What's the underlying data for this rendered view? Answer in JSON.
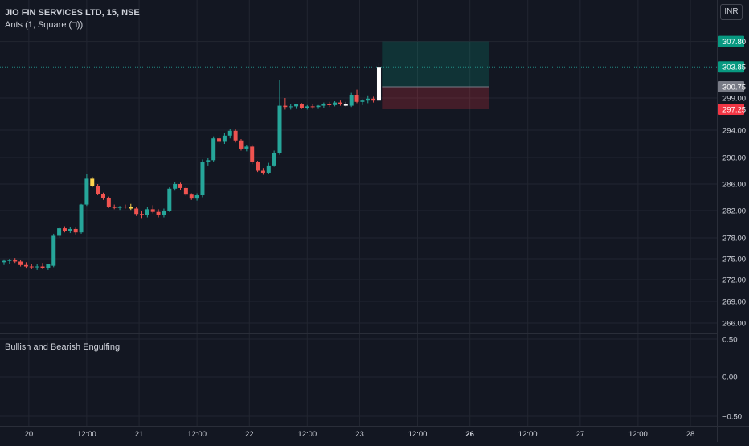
{
  "header": {
    "title": "JIO FIN SERVICES LTD, 15, NSE",
    "indicator": "Ants (1, Square (□))",
    "pane2_label": "Bullish and Bearish Engulfing",
    "currency": "INR"
  },
  "chart_data": {
    "type": "candlestick",
    "symbol": "JIO FIN SERVICES LTD",
    "interval": "15",
    "exchange": "NSE",
    "currency": "INR",
    "price_axis": {
      "ticks": [
        299.0,
        294.0,
        290.0,
        286.0,
        282.0,
        278.0,
        275.0,
        272.0,
        269.0,
        266.0
      ],
      "tick_labels": [
        "299.00",
        "294.00",
        "290.00",
        "286.00",
        "282.00",
        "278.00",
        "275.00",
        "272.00",
        "269.00",
        "266.00"
      ]
    },
    "price_badges": [
      {
        "label": "307.80",
        "value": 307.8,
        "color": "#089981"
      },
      {
        "label": "303.85",
        "value": 303.85,
        "color": "#089981"
      },
      {
        "label": "300.75",
        "value": 300.75,
        "color": "#787b86"
      },
      {
        "label": "297.25",
        "value": 297.25,
        "color": "#f23645"
      }
    ],
    "indicator_axis": {
      "ticks": [
        0.5,
        0.0,
        -0.5
      ],
      "tick_labels": [
        "0.50",
        "0.00",
        "−0.50"
      ]
    },
    "time_axis": {
      "ticks": [
        {
          "index": 4.5,
          "label": "20",
          "bold": false
        },
        {
          "index": 15,
          "label": "12:00",
          "bold": false
        },
        {
          "index": 24.5,
          "label": "21",
          "bold": false
        },
        {
          "index": 35,
          "label": "12:00",
          "bold": false
        },
        {
          "index": 44.5,
          "label": "22",
          "bold": false
        },
        {
          "index": 55,
          "label": "12:00",
          "bold": false
        },
        {
          "index": 64.5,
          "label": "23",
          "bold": false
        },
        {
          "index": 75,
          "label": "12:00",
          "bold": false
        },
        {
          "index": 84.5,
          "label": "26",
          "bold": true
        },
        {
          "index": 95,
          "label": "12:00",
          "bold": false
        },
        {
          "index": 104.5,
          "label": "27",
          "bold": false
        },
        {
          "index": 115,
          "label": "12:00",
          "bold": false
        },
        {
          "index": 124.5,
          "label": "28",
          "bold": false
        }
      ]
    },
    "last_price": 303.85,
    "position_tool": {
      "entry": 300.75,
      "target": 307.8,
      "stop": 297.25,
      "start_index": 69,
      "end_index": 88
    },
    "candles": [
      {
        "o": 274.5,
        "h": 274.9,
        "l": 274.1,
        "c": 274.7
      },
      {
        "o": 274.7,
        "h": 275.0,
        "l": 274.3,
        "c": 274.8
      },
      {
        "o": 274.8,
        "h": 275.1,
        "l": 274.4,
        "c": 274.6
      },
      {
        "o": 274.6,
        "h": 274.8,
        "l": 273.9,
        "c": 274.1
      },
      {
        "o": 274.1,
        "h": 274.5,
        "l": 273.6,
        "c": 273.9
      },
      {
        "o": 273.9,
        "h": 274.2,
        "l": 273.5,
        "c": 273.8
      },
      {
        "o": 273.8,
        "h": 274.3,
        "l": 273.4,
        "c": 273.9
      },
      {
        "o": 273.9,
        "h": 274.4,
        "l": 273.5,
        "c": 273.7
      },
      {
        "o": 273.7,
        "h": 274.3,
        "l": 273.4,
        "c": 274.2
      },
      {
        "o": 274.0,
        "h": 278.6,
        "l": 273.8,
        "c": 278.3
      },
      {
        "o": 278.3,
        "h": 279.6,
        "l": 278.0,
        "c": 279.4
      },
      {
        "o": 279.4,
        "h": 279.7,
        "l": 278.8,
        "c": 279.0
      },
      {
        "o": 279.0,
        "h": 279.6,
        "l": 278.7,
        "c": 279.3
      },
      {
        "o": 279.3,
        "h": 279.5,
        "l": 278.5,
        "c": 278.8
      },
      {
        "o": 278.8,
        "h": 283.0,
        "l": 278.6,
        "c": 282.9
      },
      {
        "o": 282.9,
        "h": 287.5,
        "l": 282.7,
        "c": 286.8
      },
      {
        "o": 286.8,
        "h": 287.1,
        "l": 285.5,
        "c": 285.7,
        "color": "#ffd54f"
      },
      {
        "o": 285.7,
        "h": 286.0,
        "l": 284.3,
        "c": 284.5
      },
      {
        "o": 284.5,
        "h": 284.7,
        "l": 283.6,
        "c": 283.9
      },
      {
        "o": 283.9,
        "h": 284.1,
        "l": 282.4,
        "c": 282.6
      },
      {
        "o": 282.6,
        "h": 282.9,
        "l": 282.2,
        "c": 282.4
      },
      {
        "o": 282.4,
        "h": 282.7,
        "l": 282.1,
        "c": 282.6
      },
      {
        "o": 282.6,
        "h": 282.9,
        "l": 282.3,
        "c": 282.5
      },
      {
        "o": 282.5,
        "h": 283.0,
        "l": 282.1,
        "c": 282.3,
        "color": "#ffd54f"
      },
      {
        "o": 282.3,
        "h": 282.6,
        "l": 281.2,
        "c": 281.5
      },
      {
        "o": 281.5,
        "h": 282.0,
        "l": 280.9,
        "c": 281.3
      },
      {
        "o": 281.3,
        "h": 282.5,
        "l": 281.0,
        "c": 282.2
      },
      {
        "o": 282.2,
        "h": 282.8,
        "l": 281.6,
        "c": 281.8
      },
      {
        "o": 281.8,
        "h": 282.2,
        "l": 281.0,
        "c": 281.3
      },
      {
        "o": 281.3,
        "h": 282.3,
        "l": 281.0,
        "c": 282.0
      },
      {
        "o": 282.0,
        "h": 285.5,
        "l": 281.8,
        "c": 285.3
      },
      {
        "o": 285.3,
        "h": 286.3,
        "l": 285.0,
        "c": 286.0
      },
      {
        "o": 286.0,
        "h": 286.2,
        "l": 285.1,
        "c": 285.4
      },
      {
        "o": 285.4,
        "h": 285.6,
        "l": 284.2,
        "c": 284.4
      },
      {
        "o": 284.4,
        "h": 284.6,
        "l": 283.6,
        "c": 283.8
      },
      {
        "o": 283.8,
        "h": 284.6,
        "l": 283.5,
        "c": 284.3
      },
      {
        "o": 284.3,
        "h": 289.7,
        "l": 284.0,
        "c": 289.3
      },
      {
        "o": 289.3,
        "h": 290.0,
        "l": 288.8,
        "c": 289.6
      },
      {
        "o": 289.6,
        "h": 293.1,
        "l": 289.4,
        "c": 292.8
      },
      {
        "o": 292.8,
        "h": 293.2,
        "l": 292.0,
        "c": 292.3
      },
      {
        "o": 292.3,
        "h": 293.6,
        "l": 292.0,
        "c": 293.2
      },
      {
        "o": 293.2,
        "h": 294.2,
        "l": 292.8,
        "c": 293.9
      },
      {
        "o": 293.9,
        "h": 294.1,
        "l": 292.2,
        "c": 292.5
      },
      {
        "o": 292.5,
        "h": 292.7,
        "l": 291.0,
        "c": 291.3
      },
      {
        "o": 291.3,
        "h": 291.8,
        "l": 290.9,
        "c": 291.6
      },
      {
        "o": 291.6,
        "h": 291.9,
        "l": 289.0,
        "c": 289.3
      },
      {
        "o": 289.3,
        "h": 289.5,
        "l": 287.8,
        "c": 288.0
      },
      {
        "o": 288.0,
        "h": 288.4,
        "l": 287.4,
        "c": 287.7
      },
      {
        "o": 287.7,
        "h": 289.2,
        "l": 287.5,
        "c": 288.8
      },
      {
        "o": 288.8,
        "h": 291.0,
        "l": 288.6,
        "c": 290.6
      },
      {
        "o": 290.6,
        "h": 301.8,
        "l": 290.4,
        "c": 297.8
      },
      {
        "o": 297.8,
        "h": 299.0,
        "l": 297.2,
        "c": 297.6
      },
      {
        "o": 297.6,
        "h": 298.0,
        "l": 297.2,
        "c": 297.7
      },
      {
        "o": 297.7,
        "h": 298.1,
        "l": 297.3,
        "c": 298.0
      },
      {
        "o": 298.0,
        "h": 298.2,
        "l": 297.3,
        "c": 297.5
      },
      {
        "o": 297.5,
        "h": 297.9,
        "l": 297.2,
        "c": 297.7
      },
      {
        "o": 297.7,
        "h": 298.0,
        "l": 297.3,
        "c": 297.6
      },
      {
        "o": 297.6,
        "h": 297.9,
        "l": 297.3,
        "c": 297.8
      },
      {
        "o": 297.8,
        "h": 298.3,
        "l": 297.5,
        "c": 298.0
      },
      {
        "o": 298.0,
        "h": 298.4,
        "l": 297.6,
        "c": 297.9
      },
      {
        "o": 297.9,
        "h": 298.5,
        "l": 297.7,
        "c": 298.3
      },
      {
        "o": 298.3,
        "h": 298.6,
        "l": 297.8,
        "c": 298.1
      },
      {
        "o": 298.1,
        "h": 298.4,
        "l": 297.7,
        "c": 297.8,
        "color": "#ffffff"
      },
      {
        "o": 297.8,
        "h": 299.8,
        "l": 297.6,
        "c": 299.5
      },
      {
        "o": 299.5,
        "h": 300.3,
        "l": 298.2,
        "c": 298.4
      },
      {
        "o": 298.4,
        "h": 298.8,
        "l": 297.9,
        "c": 298.6
      },
      {
        "o": 298.6,
        "h": 299.4,
        "l": 298.2,
        "c": 298.9
      },
      {
        "o": 298.9,
        "h": 299.2,
        "l": 298.3,
        "c": 298.6
      },
      {
        "o": 298.6,
        "h": 304.5,
        "l": 298.4,
        "c": 303.85,
        "color": "#ffffff"
      }
    ],
    "indicator_pane": {
      "title": "Bullish and Bearish Engulfing",
      "ylim": [
        -0.5,
        0.5
      ]
    }
  },
  "colors": {
    "background": "#131722",
    "grid": "#222631",
    "text": "#d1d4dc",
    "up": "#26a69a",
    "down": "#ef5350",
    "target_zone": "rgba(8,153,129,0.22)",
    "stop_zone": "rgba(242,54,69,0.22)"
  }
}
